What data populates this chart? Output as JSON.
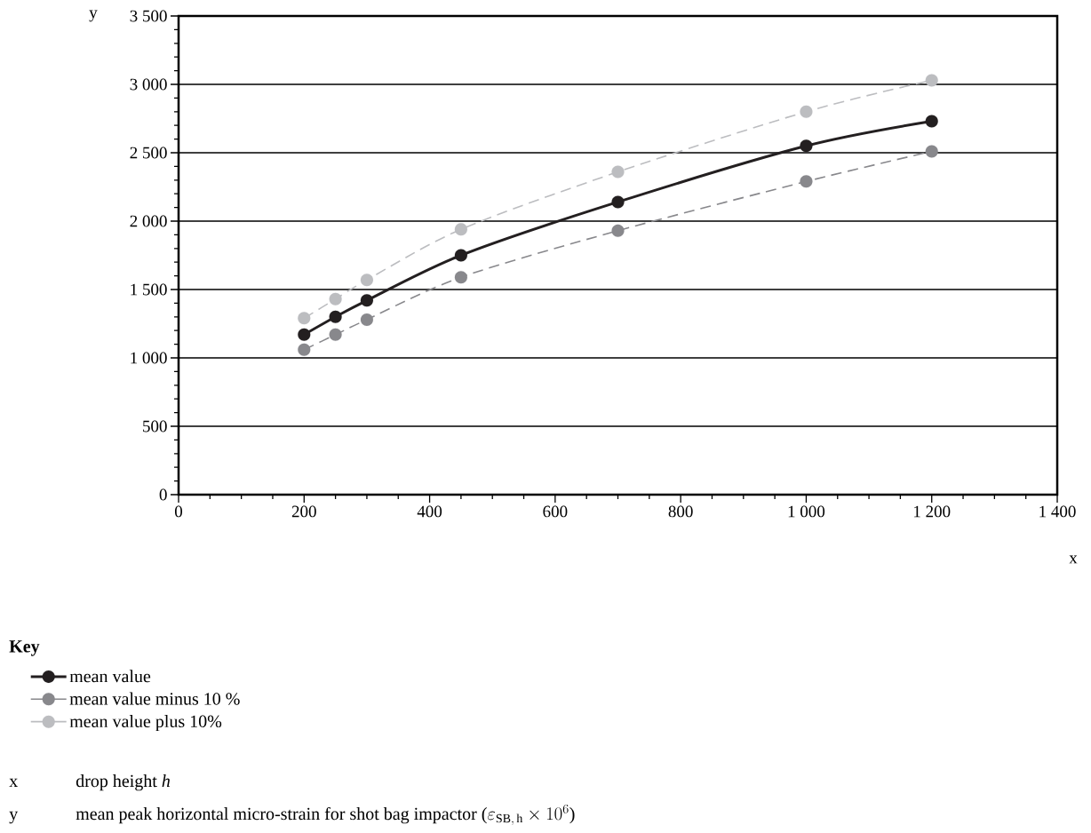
{
  "chart_data": {
    "type": "line",
    "xlabel": "x",
    "ylabel": "y",
    "legend_title": "Key",
    "x": [
      200,
      250,
      300,
      450,
      700,
      1000,
      1200
    ],
    "series": [
      {
        "name": "mean value",
        "color": "#231f20",
        "line_style": "solid",
        "values": [
          1170,
          1300,
          1420,
          1750,
          2140,
          2550,
          2730
        ]
      },
      {
        "name": "mean value minus 10 %",
        "color": "#88888c",
        "line_style": "dashed",
        "values": [
          1060,
          1170,
          1280,
          1590,
          1930,
          2290,
          2510
        ]
      },
      {
        "name": "mean value plus 10%",
        "color": "#bcbdc0",
        "line_style": "dashed",
        "values": [
          1290,
          1430,
          1570,
          1940,
          2360,
          2800,
          3030
        ]
      }
    ],
    "xlim": [
      0,
      1400
    ],
    "ylim": [
      0,
      3500
    ],
    "xticks": [
      0,
      200,
      400,
      600,
      800,
      {
        "value": 1000,
        "label": "1 000"
      },
      {
        "value": 1200,
        "label": "1 200"
      },
      {
        "value": 1400,
        "label": "1 400"
      }
    ],
    "yticks": [
      0,
      500,
      {
        "value": 1000,
        "label": "1 000"
      },
      {
        "value": 1500,
        "label": "1 500"
      },
      {
        "value": 2000,
        "label": "2 000"
      },
      {
        "value": 2500,
        "label": "2 500"
      },
      {
        "value": 3000,
        "label": "3 000"
      },
      {
        "value": 3500,
        "label": "3 500"
      }
    ],
    "grid": "y",
    "legend": "bottom left",
    "marker": "circle",
    "annotations": [
      "drop height *h*",
      "\\mbox{mean peak horizontal micro-strain for shot bag impactor (}\\varepsilon_{\\mathrm{SB,\\,h}}\\times 10^{6}\\mbox{)}"
    ]
  }
}
